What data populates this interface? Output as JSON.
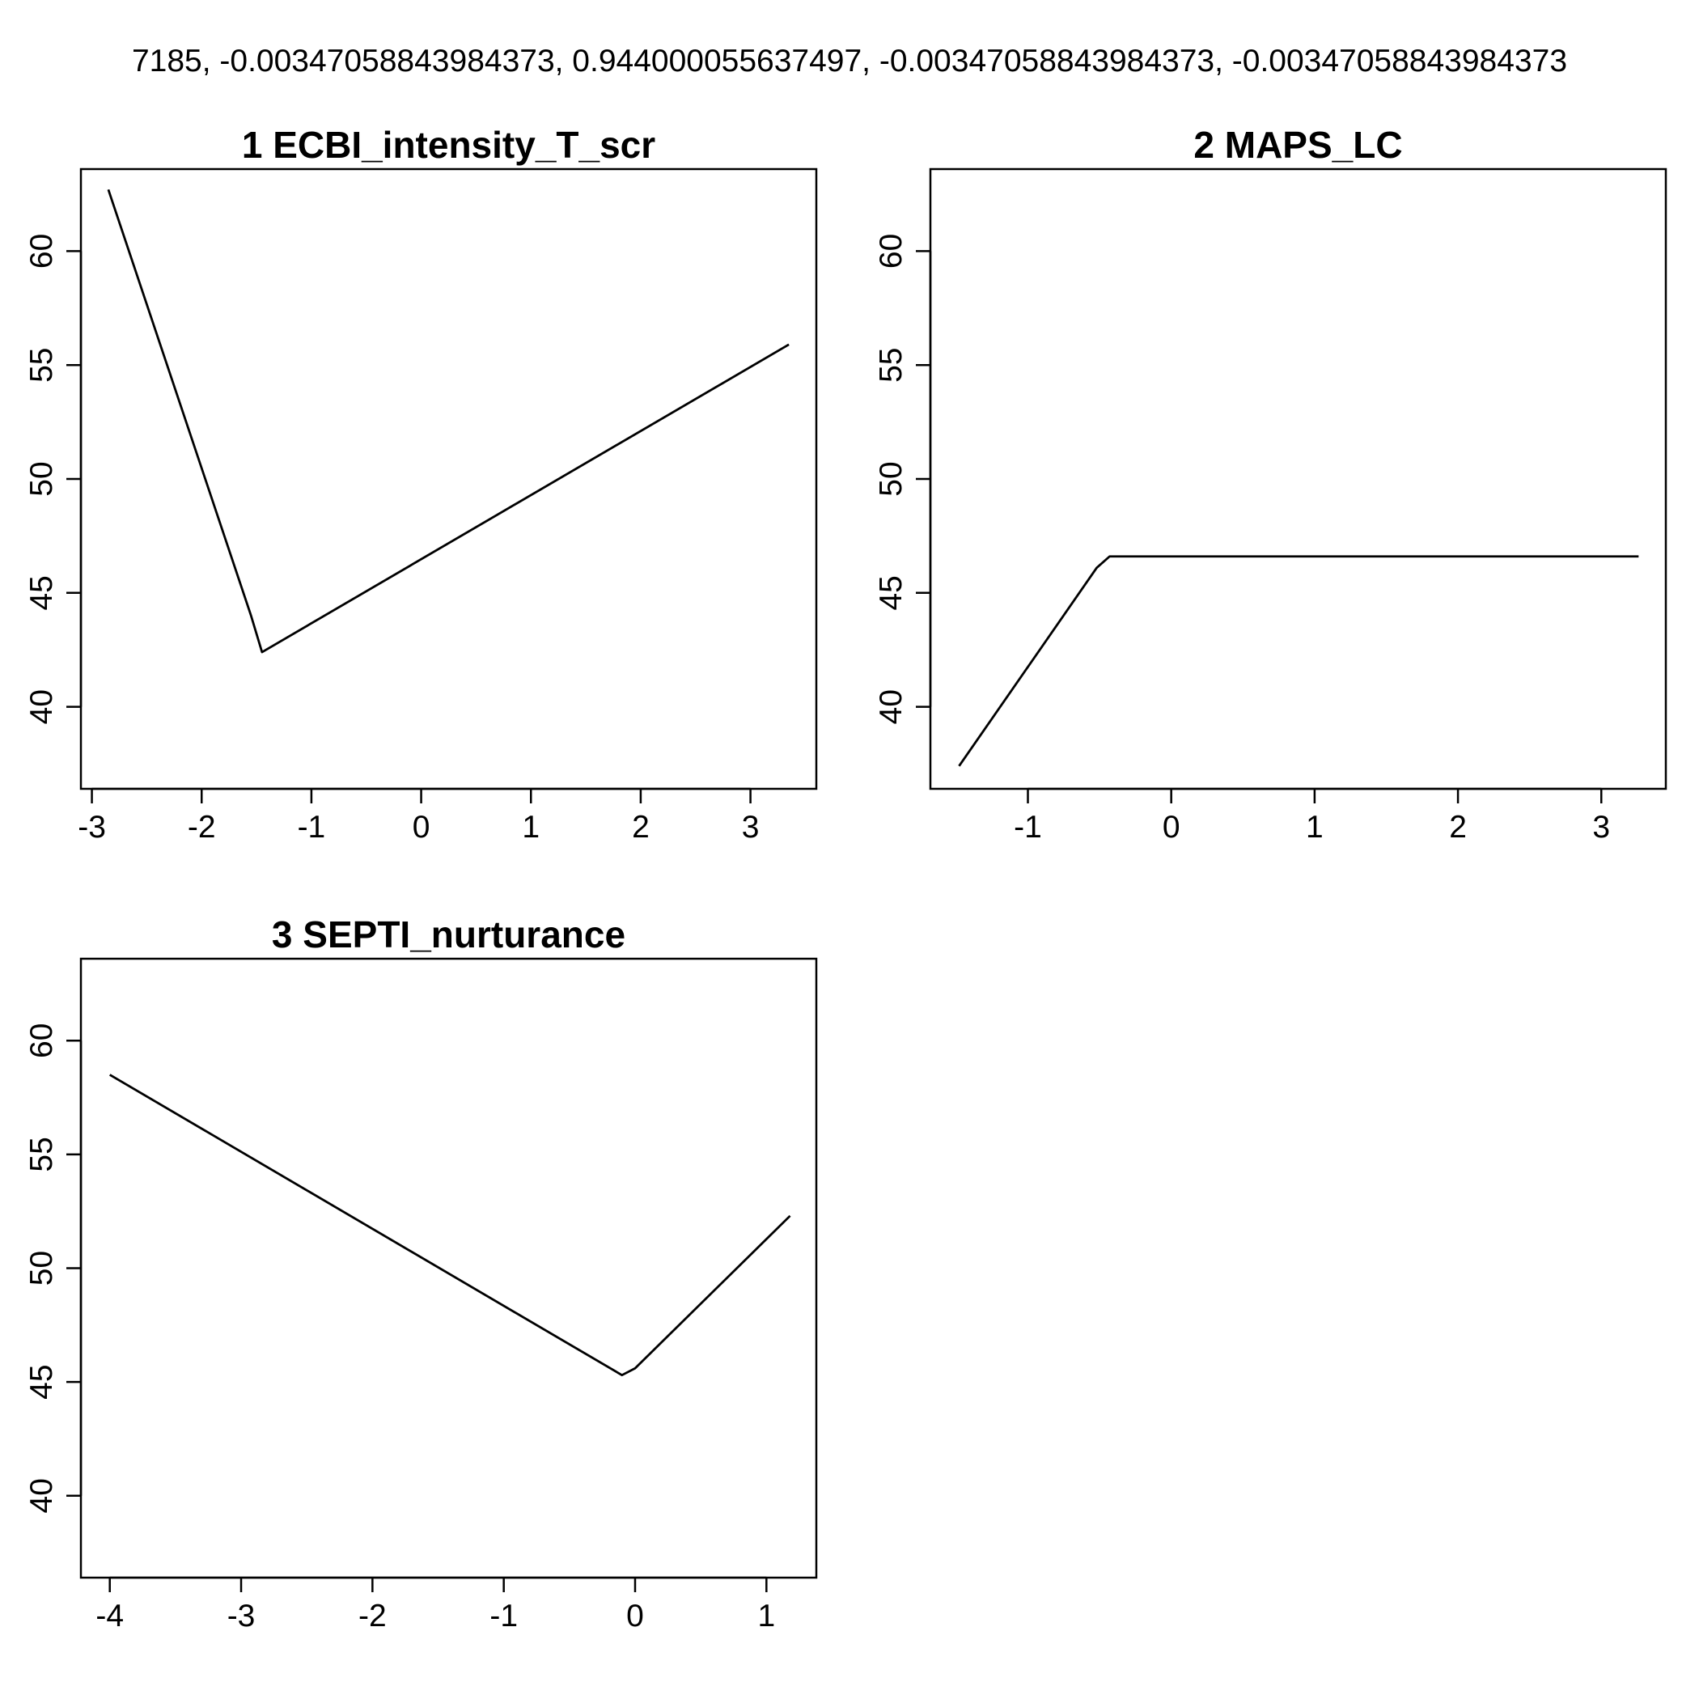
{
  "header": {
    "text": "7185, -0.00347058843984373, 0.944000055637497, -0.00347058843984373, -0.00347058843984373"
  },
  "style": {
    "line_color": "#000000",
    "background": "#ffffff"
  },
  "chart_data": [
    {
      "type": "line",
      "title": "1  ECBI_intensity_T_scr",
      "xlabel": "",
      "ylabel": "",
      "xlim": [
        -3.1,
        3.6
      ],
      "ylim": [
        36.4,
        63.6
      ],
      "xticks": [
        -3,
        -2,
        -1,
        0,
        1,
        2,
        3
      ],
      "xtick_labels": [
        "-3",
        "-2",
        "-1",
        "0",
        "1",
        "2",
        "3"
      ],
      "yticks": [
        40,
        45,
        50,
        55,
        60
      ],
      "ytick_labels": [
        "40",
        "45",
        "50",
        "55",
        "60"
      ],
      "x": [
        -2.85,
        -1.55,
        -1.45,
        3.35
      ],
      "y": [
        62.7,
        44.0,
        42.4,
        55.9
      ]
    },
    {
      "type": "line",
      "title": "2  MAPS_LC",
      "xlabel": "",
      "ylabel": "",
      "xlim": [
        -1.68,
        3.45
      ],
      "ylim": [
        36.4,
        63.6
      ],
      "xticks": [
        -1,
        0,
        1,
        2,
        3
      ],
      "xtick_labels": [
        "-1",
        "0",
        "1",
        "2",
        "3"
      ],
      "yticks": [
        40,
        45,
        50,
        55,
        60
      ],
      "ytick_labels": [
        "40",
        "45",
        "50",
        "55",
        "60"
      ],
      "x": [
        -1.48,
        -0.52,
        -0.43,
        3.26
      ],
      "y": [
        37.4,
        46.1,
        46.6,
        46.6
      ]
    },
    {
      "type": "line",
      "title": "3  SEPTI_nurturance",
      "xlabel": "",
      "ylabel": "",
      "xlim": [
        -4.22,
        1.38
      ],
      "ylim": [
        36.4,
        63.6
      ],
      "xticks": [
        -4,
        -3,
        -2,
        -1,
        0,
        1
      ],
      "xtick_labels": [
        "-4",
        "-3",
        "-2",
        "-1",
        "0",
        "1"
      ],
      "yticks": [
        40,
        45,
        50,
        55,
        60
      ],
      "ytick_labels": [
        "40",
        "45",
        "50",
        "55",
        "60"
      ],
      "x": [
        -4.0,
        -0.1,
        0.0,
        1.18
      ],
      "y": [
        58.5,
        45.3,
        45.6,
        52.3
      ]
    }
  ]
}
